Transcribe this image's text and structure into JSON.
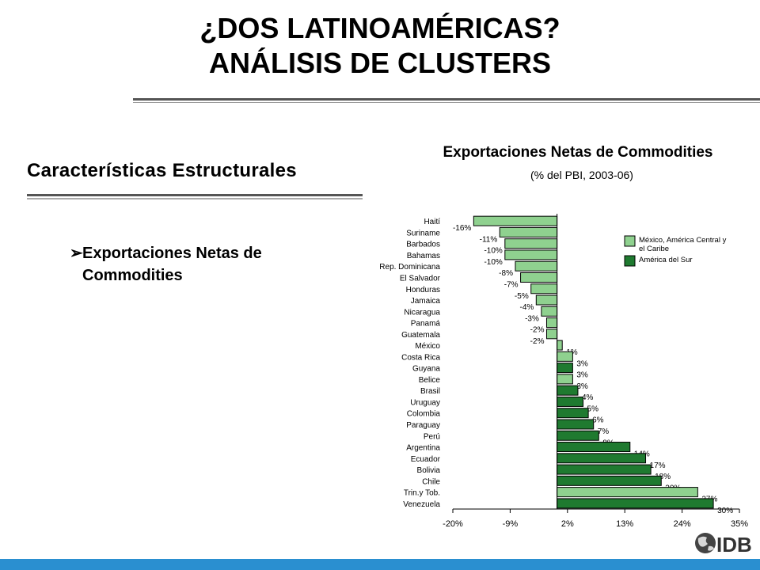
{
  "title": {
    "line1": "¿DOS LATINOAMÉRICAS?",
    "line2": "ANÁLISIS DE CLUSTERS"
  },
  "section": {
    "heading": "Características Estructurales"
  },
  "bullet": {
    "marker": "➢",
    "text": "Exportaciones Netas de Commodities"
  },
  "logo": {
    "text": "IDB"
  },
  "colors": {
    "light": "#8fd18f",
    "dark": "#1f7a30",
    "accent_bar": "#2a8fd0"
  },
  "chart_data": {
    "type": "bar",
    "orientation": "horizontal",
    "title": "Exportaciones Netas de Commodities",
    "subtitle": "(% del PBI, 2003-06)",
    "categories": [
      "Haití",
      "Suriname",
      "Barbados",
      "Bahamas",
      "Rep. Dominicana",
      "El Salvador",
      "Honduras",
      "Jamaica",
      "Nicaragua",
      "Panamá",
      "Guatemala",
      "México",
      "Costa Rica",
      "Guyana",
      "Belice",
      "Brasil",
      "Uruguay",
      "Colombia",
      "Paraguay",
      "Perú",
      "Argentina",
      "Ecuador",
      "Bolivia",
      "Chile",
      "Trin.y Tob.",
      "Venezuela"
    ],
    "values": [
      -16,
      -11,
      -10,
      -10,
      -8,
      -7,
      -5,
      -4,
      -3,
      -2,
      -2,
      1,
      3,
      3,
      3,
      4,
      5,
      6,
      7,
      8,
      14,
      17,
      18,
      20,
      27,
      30
    ],
    "value_labels": [
      "-16%",
      "-11%",
      "-10%",
      "-10%",
      "-8%",
      "-7%",
      "-5%",
      "-4%",
      "-3%",
      "-2%",
      "-2%",
      "1%",
      "3%",
      "3%",
      "3%",
      "4%",
      "5%",
      "6%",
      "7%",
      "8%",
      "14%",
      "17%",
      "18%",
      "20%",
      "27%",
      "30%"
    ],
    "groups": [
      "mac",
      "mac",
      "mac",
      "mac",
      "mac",
      "mac",
      "mac",
      "mac",
      "mac",
      "mac",
      "mac",
      "mac",
      "mac",
      "sur",
      "mac",
      "sur",
      "sur",
      "sur",
      "sur",
      "sur",
      "sur",
      "sur",
      "sur",
      "sur",
      "mac",
      "sur"
    ],
    "legend": [
      {
        "key": "mac",
        "label": "México, América Central y el Caribe",
        "label_lines": [
          "México, América Central y",
          "el Caribe"
        ],
        "color": "#8fd18f"
      },
      {
        "key": "sur",
        "label": "América del Sur",
        "label_lines": [
          "América del Sur"
        ],
        "color": "#1f7a30"
      }
    ],
    "legend_position": "top-right",
    "xlim": [
      -20,
      35
    ],
    "xticks": [
      -20,
      -9,
      2,
      13,
      24,
      35
    ],
    "xtick_labels": [
      "-20%",
      "-9%",
      "2%",
      "13%",
      "24%",
      "35%"
    ],
    "grid": false
  }
}
